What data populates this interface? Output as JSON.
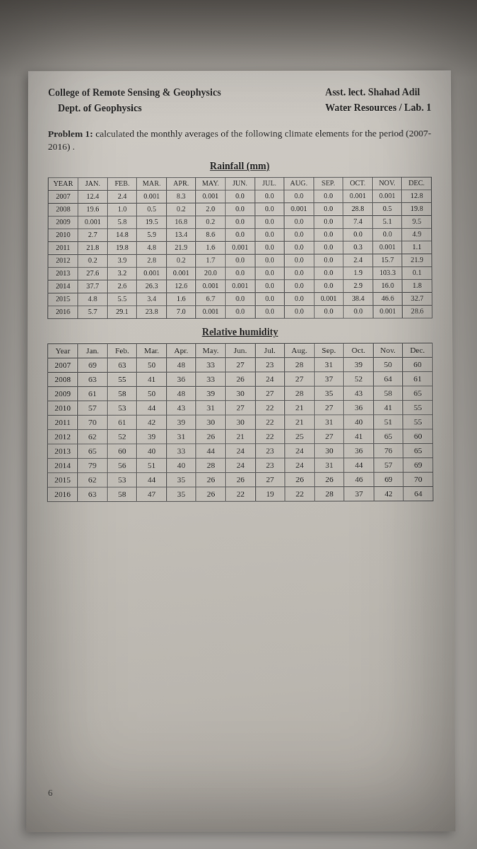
{
  "header": {
    "left1": "College of Remote Sensing & Geophysics",
    "left2": "Dept. of Geophysics",
    "right1": "Asst. lect. Shahad Adil",
    "right2": "Water Resources / Lab. 1"
  },
  "problem": {
    "label": "Problem 1:",
    "text": " calculated the monthly averages of the following climate elements for the period (2007-2016) ."
  },
  "rainfall": {
    "title": "Rainfall (mm)",
    "columns": [
      "YEAR",
      "JAN.",
      "FEB.",
      "MAR.",
      "APR.",
      "MAY.",
      "JUN.",
      "JUL.",
      "AUG.",
      "SEP.",
      "OCT.",
      "NOV.",
      "DEC."
    ],
    "rows": [
      [
        "2007",
        "12.4",
        "2.4",
        "0.001",
        "8.3",
        "0.001",
        "0.0",
        "0.0",
        "0.0",
        "0.0",
        "0.001",
        "0.001",
        "12.8"
      ],
      [
        "2008",
        "19.6",
        "1.0",
        "0.5",
        "0.2",
        "2.0",
        "0.0",
        "0.0",
        "0.001",
        "0.0",
        "28.8",
        "0.5",
        "19.8"
      ],
      [
        "2009",
        "0.001",
        "5.8",
        "19.5",
        "16.8",
        "0.2",
        "0.0",
        "0.0",
        "0.0",
        "0.0",
        "7.4",
        "5.1",
        "9.5"
      ],
      [
        "2010",
        "2.7",
        "14.8",
        "5.9",
        "13.4",
        "8.6",
        "0.0",
        "0.0",
        "0.0",
        "0.0",
        "0.0",
        "0.0",
        "4.9"
      ],
      [
        "2011",
        "21.8",
        "19.8",
        "4.8",
        "21.9",
        "1.6",
        "0.001",
        "0.0",
        "0.0",
        "0.0",
        "0.3",
        "0.001",
        "1.1"
      ],
      [
        "2012",
        "0.2",
        "3.9",
        "2.8",
        "0.2",
        "1.7",
        "0.0",
        "0.0",
        "0.0",
        "0.0",
        "2.4",
        "15.7",
        "21.9"
      ],
      [
        "2013",
        "27.6",
        "3.2",
        "0.001",
        "0.001",
        "20.0",
        "0.0",
        "0.0",
        "0.0",
        "0.0",
        "1.9",
        "103.3",
        "0.1"
      ],
      [
        "2014",
        "37.7",
        "2.6",
        "26.3",
        "12.6",
        "0.001",
        "0.001",
        "0.0",
        "0.0",
        "0.0",
        "2.9",
        "16.0",
        "1.8"
      ],
      [
        "2015",
        "4.8",
        "5.5",
        "3.4",
        "1.6",
        "6.7",
        "0.0",
        "0.0",
        "0.0",
        "0.001",
        "38.4",
        "46.6",
        "32.7"
      ],
      [
        "2016",
        "5.7",
        "29.1",
        "23.8",
        "7.0",
        "0.001",
        "0.0",
        "0.0",
        "0.0",
        "0.0",
        "0.0",
        "0.001",
        "28.6"
      ]
    ]
  },
  "humidity": {
    "title": "Relative humidity",
    "columns": [
      "Year",
      "Jan.",
      "Feb.",
      "Mar.",
      "Apr.",
      "May.",
      "Jun.",
      "Jul.",
      "Aug.",
      "Sep.",
      "Oct.",
      "Nov.",
      "Dec."
    ],
    "rows": [
      [
        "2007",
        "69",
        "63",
        "50",
        "48",
        "33",
        "27",
        "23",
        "28",
        "31",
        "39",
        "50",
        "60"
      ],
      [
        "2008",
        "63",
        "55",
        "41",
        "36",
        "33",
        "26",
        "24",
        "27",
        "37",
        "52",
        "64",
        "61"
      ],
      [
        "2009",
        "61",
        "58",
        "50",
        "48",
        "39",
        "30",
        "27",
        "28",
        "35",
        "43",
        "58",
        "65"
      ],
      [
        "2010",
        "57",
        "53",
        "44",
        "43",
        "31",
        "27",
        "22",
        "21",
        "27",
        "36",
        "41",
        "55"
      ],
      [
        "2011",
        "70",
        "61",
        "42",
        "39",
        "30",
        "30",
        "22",
        "21",
        "31",
        "40",
        "51",
        "55"
      ],
      [
        "2012",
        "62",
        "52",
        "39",
        "31",
        "26",
        "21",
        "22",
        "25",
        "27",
        "41",
        "65",
        "60"
      ],
      [
        "2013",
        "65",
        "60",
        "40",
        "33",
        "44",
        "24",
        "23",
        "24",
        "30",
        "36",
        "76",
        "65"
      ],
      [
        "2014",
        "79",
        "56",
        "51",
        "40",
        "28",
        "24",
        "23",
        "24",
        "31",
        "44",
        "57",
        "69"
      ],
      [
        "2015",
        "62",
        "53",
        "44",
        "35",
        "26",
        "26",
        "27",
        "26",
        "26",
        "46",
        "69",
        "70"
      ],
      [
        "2016",
        "63",
        "58",
        "47",
        "35",
        "26",
        "22",
        "19",
        "22",
        "28",
        "37",
        "42",
        "64"
      ]
    ]
  },
  "pagenum": "6",
  "style": {
    "page_bg_from": "#cfcbc5",
    "page_bg_to": "#aea9a2",
    "border_color": "#5a5a5a",
    "text_color": "#2b2b2b",
    "font_family": "Times New Roman",
    "table_font_size_pt": 10.2,
    "humidity_font_size_pt": 11.3,
    "year_col_width_pct": 7.8,
    "month_col_width_pct": 7.68
  }
}
